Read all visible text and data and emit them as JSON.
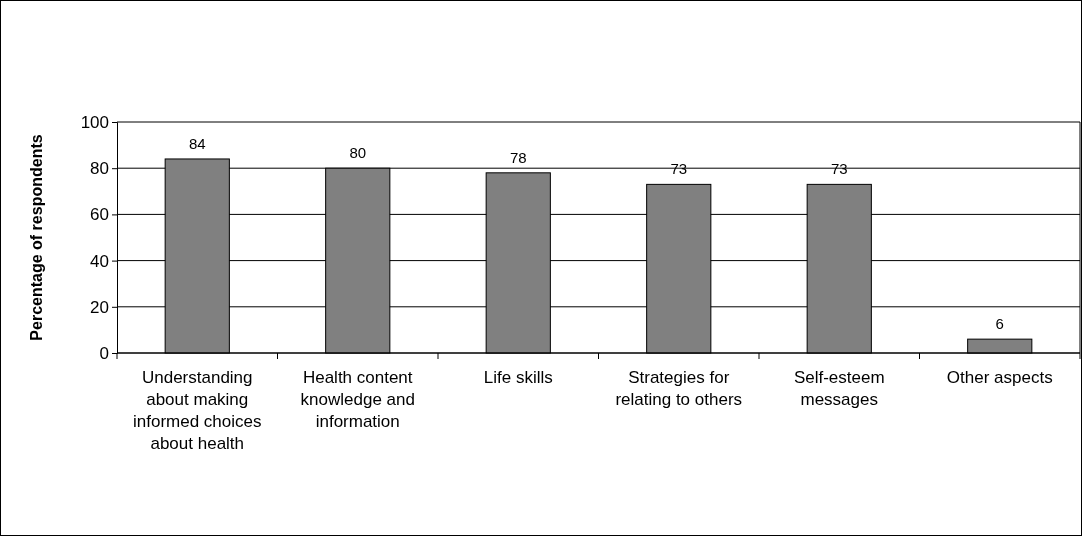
{
  "chart_data": {
    "type": "bar",
    "ylabel": "Percentage of respondents",
    "categories": [
      "Understanding about making informed choices about health",
      "Health content knowledge and information",
      "Life skills",
      "Strategies for relating to others",
      "Self-esteem messages",
      "Other aspects"
    ],
    "values": [
      84,
      80,
      78,
      73,
      73,
      6
    ],
    "color": "#808080",
    "ylim": [
      0,
      100
    ],
    "yticks": [
      0,
      20,
      40,
      60,
      80,
      100
    ],
    "grid": "y",
    "data_labels": true
  }
}
